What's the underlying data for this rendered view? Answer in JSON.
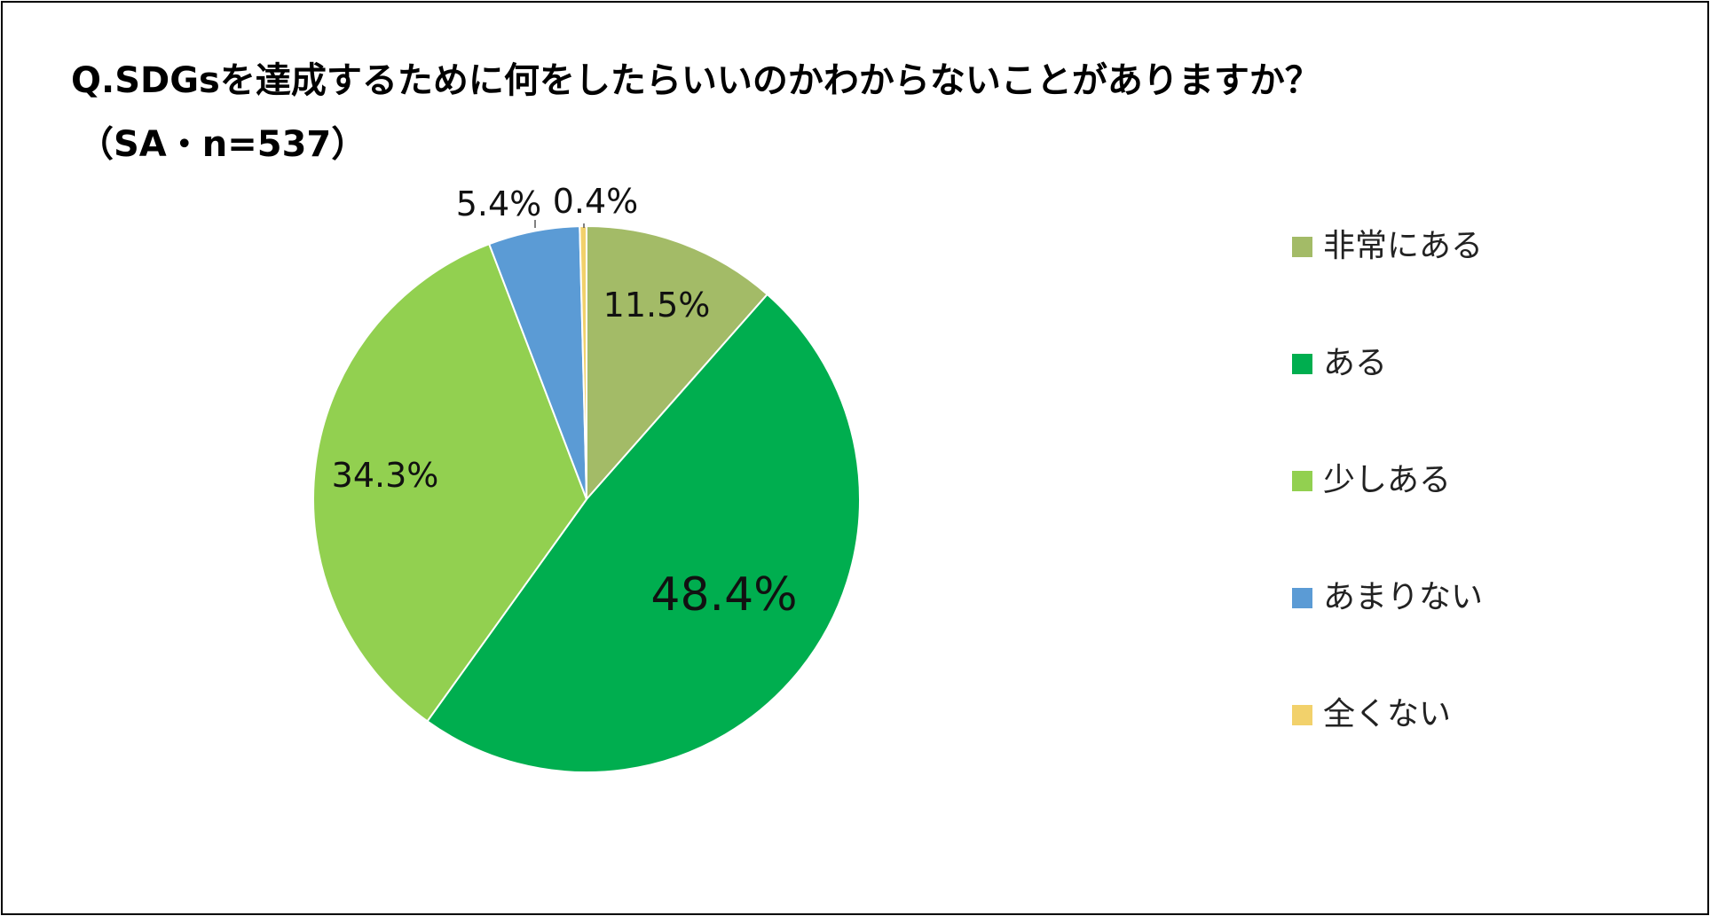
{
  "chart_data": {
    "type": "pie",
    "title": "Q.SDGsを達成するために何をしたらいいのかわからないことがありますか？",
    "subtitle": "（SA・n=537）",
    "categories": [
      "非常にある",
      "ある",
      "少しある",
      "あまりない",
      "全くない"
    ],
    "values": [
      11.5,
      48.4,
      34.3,
      5.4,
      0.4
    ],
    "labels": [
      "11.5%",
      "48.4%",
      "34.3%",
      "5.4%",
      "0.4%"
    ],
    "colors": [
      "#a3bb67",
      "#00ae4f",
      "#92d050",
      "#5b9bd5",
      "#f2d16b"
    ],
    "legend_position": "right"
  }
}
